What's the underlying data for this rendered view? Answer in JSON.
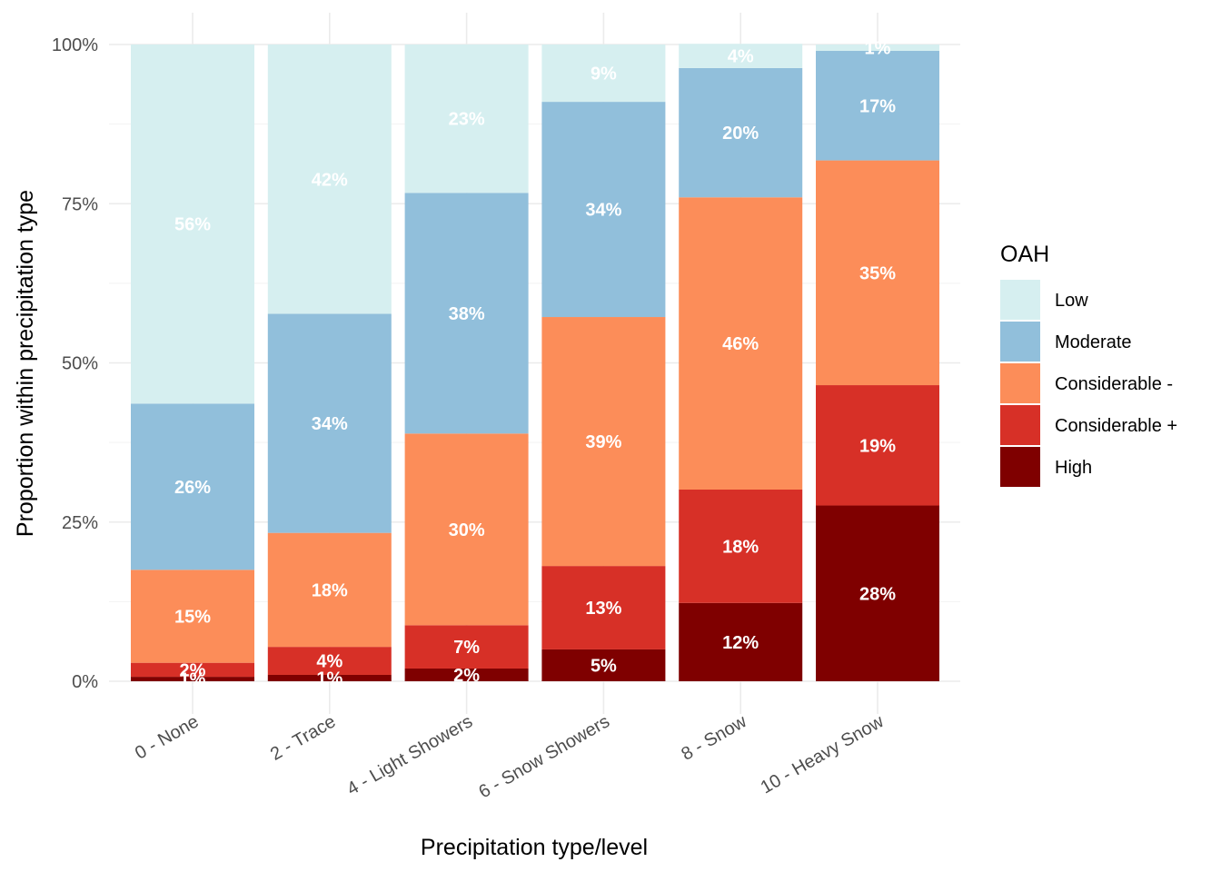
{
  "chart_data": {
    "type": "bar",
    "stacked": true,
    "xlabel": "Precipitation type/level",
    "ylabel": "Proportion within precipitation type",
    "ylim": [
      0,
      1
    ],
    "yticks": [
      0,
      0.25,
      0.5,
      0.75,
      1
    ],
    "ytick_labels": [
      "0%",
      "25%",
      "50%",
      "75%",
      "100%"
    ],
    "grid": true,
    "categories": [
      "0 - None",
      "2 - Trace",
      "4 - Light Showers",
      "6 - Snow Showers",
      "8 - Snow",
      "10 - Heavy Snow"
    ],
    "series": [
      {
        "name": "High",
        "color": "#7f0000",
        "values": [
          0.007,
          0.01,
          0.02,
          0.05,
          0.123,
          0.276
        ],
        "labels": [
          "1%",
          "1%",
          "2%",
          "5%",
          "12%",
          "28%"
        ]
      },
      {
        "name": "Considerable +",
        "color": "#d73027",
        "values": [
          0.022,
          0.044,
          0.068,
          0.131,
          0.178,
          0.189
        ],
        "labels": [
          "2%",
          "4%",
          "7%",
          "13%",
          "18%",
          "19%"
        ]
      },
      {
        "name": "Considerable -",
        "color": "#fc8d59",
        "values": [
          0.146,
          0.179,
          0.301,
          0.391,
          0.459,
          0.353
        ],
        "labels": [
          "15%",
          "18%",
          "30%",
          "39%",
          "46%",
          "35%"
        ]
      },
      {
        "name": "Moderate",
        "color": "#91bfdb",
        "values": [
          0.261,
          0.344,
          0.378,
          0.338,
          0.203,
          0.172
        ],
        "labels": [
          "26%",
          "34%",
          "38%",
          "34%",
          "20%",
          "17%"
        ]
      },
      {
        "name": "Low",
        "color": "#d6eff0",
        "values": [
          0.564,
          0.423,
          0.233,
          0.09,
          0.038,
          0.01
        ],
        "labels": [
          "56%",
          "42%",
          "23%",
          "9%",
          "4%",
          "1%"
        ]
      }
    ],
    "legend": {
      "title": "OAH",
      "position": "right",
      "order": [
        "Low",
        "Moderate",
        "Considerable -",
        "Considerable +",
        "High"
      ]
    }
  }
}
